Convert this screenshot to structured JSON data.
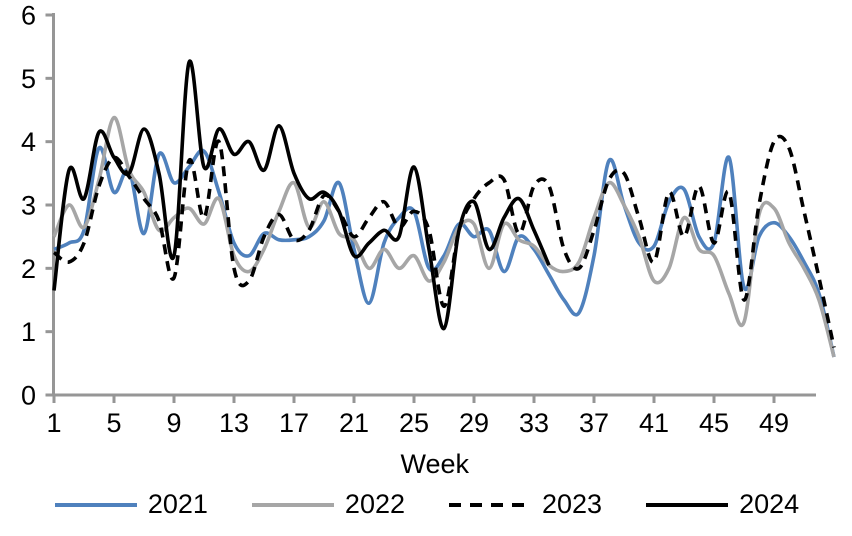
{
  "chart_data": {
    "type": "line",
    "title": "",
    "xlabel": "Week",
    "ylabel": "",
    "ylim": [
      0,
      6
    ],
    "y_ticks": [
      0,
      1,
      2,
      3,
      4,
      5,
      6
    ],
    "x_ticks": [
      1,
      5,
      9,
      13,
      17,
      21,
      25,
      29,
      33,
      37,
      41,
      45,
      49
    ],
    "x_range": [
      1,
      53
    ],
    "grid": false,
    "legend_position": "bottom",
    "axis_color": "#969696",
    "text_color": "#000000",
    "series": [
      {
        "name": "2021",
        "color": "#4F81BD",
        "dash": "solid",
        "values": [
          2.3,
          2.4,
          2.6,
          3.9,
          3.2,
          3.55,
          2.55,
          3.8,
          3.35,
          3.6,
          3.85,
          3.2,
          2.4,
          2.2,
          2.55,
          2.45,
          2.45,
          2.5,
          2.75,
          3.35,
          2.3,
          1.45,
          2.4,
          2.8,
          2.9,
          2.0,
          2.2,
          2.7,
          2.5,
          2.6,
          1.95,
          2.5,
          2.3,
          1.9,
          1.5,
          1.3,
          2.2,
          3.7,
          3.0,
          2.4,
          2.35,
          3.05,
          3.25,
          2.5,
          2.4,
          3.75,
          1.7,
          2.5,
          2.72,
          2.5,
          2.1,
          1.6,
          0.6
        ]
      },
      {
        "name": "2022",
        "color": "#A6A6A6",
        "dash": "solid",
        "values": [
          2.5,
          3.0,
          2.65,
          3.4,
          4.38,
          3.55,
          3.2,
          2.6,
          2.8,
          2.95,
          2.7,
          3.1,
          2.2,
          1.95,
          2.3,
          2.9,
          3.35,
          2.65,
          3.05,
          2.55,
          2.45,
          2.0,
          2.3,
          2.0,
          2.2,
          1.8,
          2.1,
          2.65,
          2.7,
          2.0,
          2.7,
          2.45,
          2.35,
          2.05,
          1.95,
          2.1,
          2.8,
          3.35,
          3.0,
          2.5,
          1.8,
          2.0,
          2.8,
          2.3,
          2.2,
          1.6,
          1.15,
          2.85,
          2.95,
          2.4,
          2.0,
          1.5,
          0.6
        ]
      },
      {
        "name": "2023",
        "color": "#000000",
        "dash": "dashed",
        "values": [
          2.25,
          2.1,
          2.4,
          3.3,
          3.75,
          3.45,
          3.1,
          2.75,
          1.85,
          3.7,
          2.8,
          4.0,
          2.0,
          1.8,
          2.5,
          2.85,
          2.45,
          2.6,
          3.15,
          2.9,
          2.5,
          2.8,
          3.05,
          2.65,
          2.9,
          2.6,
          1.4,
          2.6,
          3.1,
          3.35,
          3.4,
          2.55,
          3.3,
          3.3,
          2.3,
          2.0,
          2.6,
          3.4,
          3.5,
          2.8,
          2.1,
          3.2,
          2.5,
          3.3,
          2.4,
          3.2,
          1.5,
          3.0,
          4.0,
          3.9,
          2.9,
          1.85,
          0.75
        ]
      },
      {
        "name": "2024",
        "color": "#000000",
        "dash": "solid",
        "values": [
          1.65,
          3.55,
          3.1,
          4.15,
          3.75,
          3.5,
          4.2,
          3.5,
          2.2,
          5.25,
          3.6,
          4.2,
          3.8,
          4.0,
          3.55,
          4.25,
          3.5,
          3.1,
          3.2,
          2.9,
          2.2,
          2.4,
          2.6,
          2.5,
          3.6,
          2.3,
          1.05,
          2.6,
          3.05,
          2.3,
          2.8,
          3.1,
          2.6,
          2.05
        ]
      }
    ]
  }
}
